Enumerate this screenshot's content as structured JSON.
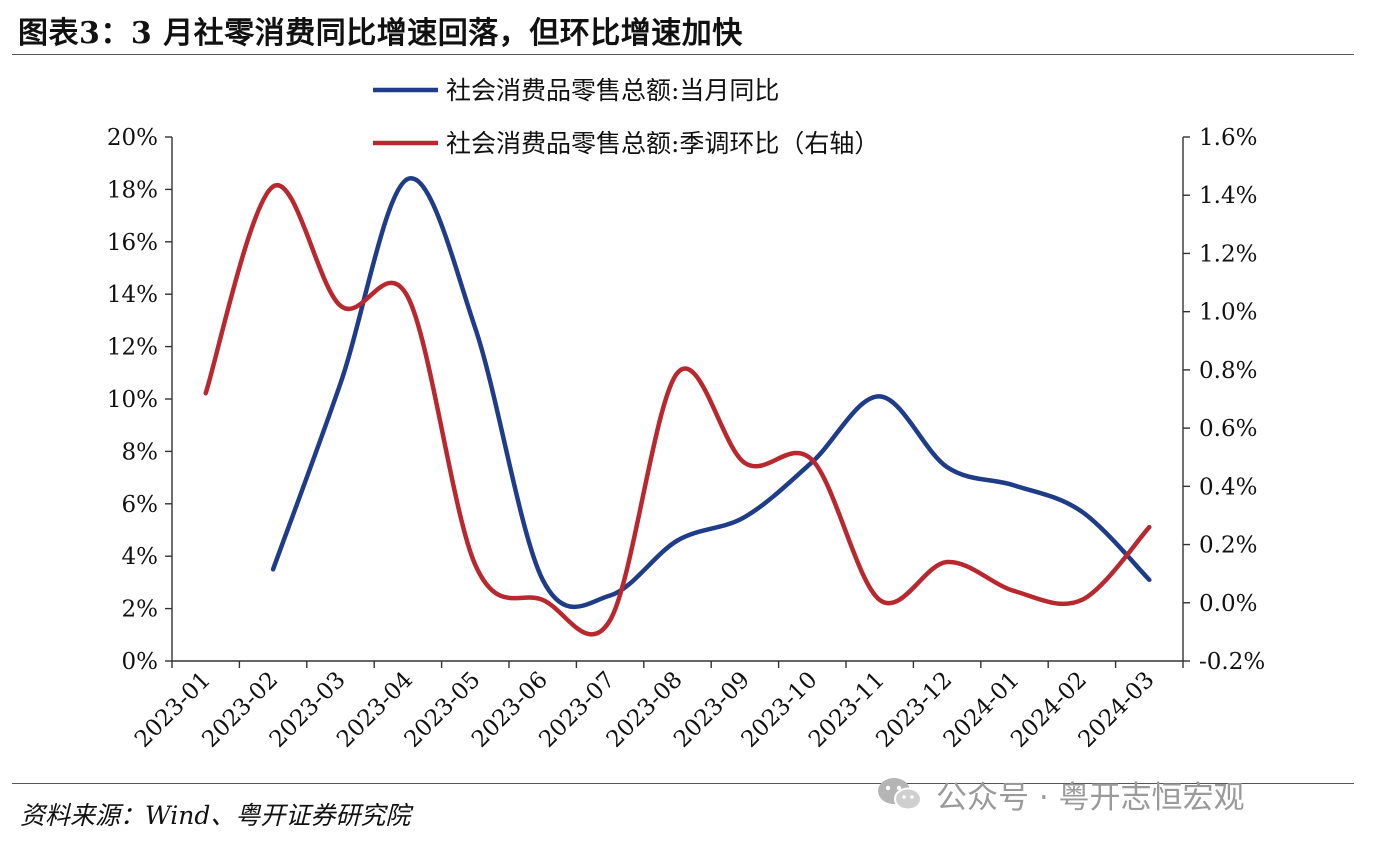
{
  "title": "图表3：3 月社零消费同比增速回落，但环比增速加快",
  "source": "资料来源：Wind、粤开证券研究院",
  "watermark": {
    "icon": "wechat-icon",
    "text": "公众号 · 粤开志恒宏观"
  },
  "chart_data": {
    "type": "line",
    "categories": [
      "2023-01",
      "2023-02",
      "2023-03",
      "2023-04",
      "2023-05",
      "2023-06",
      "2023-07",
      "2023-08",
      "2023-09",
      "2023-10",
      "2023-11",
      "2023-12",
      "2024-01",
      "2024-02",
      "2024-03"
    ],
    "left_axis": {
      "range": [
        0,
        20
      ],
      "ticks": [
        0,
        2,
        4,
        6,
        8,
        10,
        12,
        14,
        16,
        18,
        20
      ],
      "tick_labels": [
        "0%",
        "2%",
        "4%",
        "6%",
        "8%",
        "10%",
        "12%",
        "14%",
        "16%",
        "18%",
        "20%"
      ]
    },
    "right_axis": {
      "range": [
        -0.2,
        1.6
      ],
      "ticks": [
        -0.2,
        0.0,
        0.2,
        0.4,
        0.6,
        0.8,
        1.0,
        1.2,
        1.4,
        1.6
      ],
      "tick_labels": [
        "-0.2%",
        "0.0%",
        "0.2%",
        "0.4%",
        "0.6%",
        "0.8%",
        "1.0%",
        "1.2%",
        "1.4%",
        "1.6%"
      ]
    },
    "series": [
      {
        "name": "社会消费品零售总额:当月同比",
        "axis": "left",
        "color": "#1f3c88",
        "values": [
          null,
          3.5,
          10.6,
          18.4,
          12.7,
          3.1,
          2.5,
          4.6,
          5.5,
          7.6,
          10.1,
          7.4,
          6.7,
          5.7,
          3.1
        ]
      },
      {
        "name": "社会消费品零售总额:季调环比（右轴）",
        "axis": "right",
        "color": "#b8282e",
        "values": [
          0.72,
          1.43,
          1.02,
          1.05,
          0.13,
          0.01,
          -0.06,
          0.79,
          0.48,
          0.49,
          0.01,
          0.14,
          0.04,
          0.01,
          0.26
        ]
      }
    ],
    "legend": "top-center",
    "grid": false
  }
}
